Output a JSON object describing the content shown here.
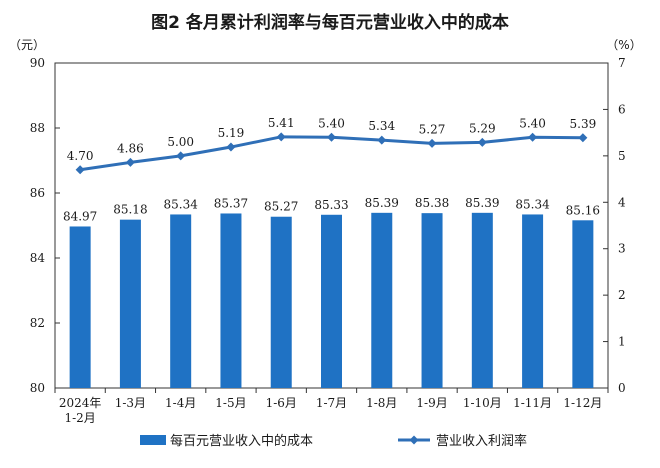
{
  "chart_data": {
    "type": "bar",
    "title": "图2  各月累计利润率与每百元营业收入中的成本",
    "left_unit": "（元）",
    "right_unit": "（%）",
    "categories": [
      "2024年\n1-2月",
      "1-3月",
      "1-4月",
      "1-5月",
      "1-6月",
      "1-7月",
      "1-8月",
      "1-9月",
      "1-10月",
      "1-11月",
      "1-12月"
    ],
    "series": [
      {
        "name": "每百元营业收入中的成本",
        "kind": "bar",
        "axis": "left",
        "color": "#1f72c4",
        "values": [
          84.97,
          85.18,
          85.34,
          85.37,
          85.27,
          85.33,
          85.39,
          85.38,
          85.39,
          85.34,
          85.16
        ],
        "labels": [
          "84.97",
          "85.18",
          "85.34",
          "85.37",
          "85.27",
          "85.33",
          "85.39",
          "85.38",
          "85.39",
          "85.34",
          "85.16"
        ]
      },
      {
        "name": "营业收入利润率",
        "kind": "line",
        "axis": "right",
        "color": "#2f6fb7",
        "values": [
          4.7,
          4.86,
          5.0,
          5.19,
          5.41,
          5.4,
          5.34,
          5.27,
          5.29,
          5.4,
          5.39
        ],
        "labels": [
          "4.70",
          "4.86",
          "5.00",
          "5.19",
          "5.41",
          "5.40",
          "5.34",
          "5.27",
          "5.29",
          "5.40",
          "5.39"
        ]
      }
    ],
    "left_axis": {
      "min": 80,
      "max": 90,
      "ticks": [
        "80",
        "82",
        "84",
        "86",
        "88",
        "90"
      ]
    },
    "right_axis": {
      "min": 0,
      "max": 7,
      "ticks": [
        "0",
        "1",
        "2",
        "3",
        "4",
        "5",
        "6",
        "7"
      ]
    },
    "grid": false,
    "legend_position": "bottom"
  }
}
